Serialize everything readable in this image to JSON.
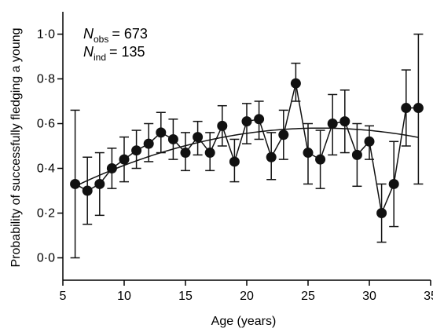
{
  "chart_data": {
    "type": "scatter",
    "xlabel": "Age (years)",
    "ylabel": "Probability of successfully fledging a young",
    "xlim": [
      5,
      35
    ],
    "ylim": [
      -0.1,
      1.1
    ],
    "xticks": [
      5,
      10,
      15,
      20,
      25,
      30,
      35
    ],
    "xtick_labels": [
      "5",
      "10",
      "15",
      "20",
      "25",
      "30",
      "35"
    ],
    "yticks": [
      0.0,
      0.2,
      0.4,
      0.6,
      0.8,
      1.0
    ],
    "ytick_labels": [
      "0·0",
      "0·2",
      "0·4",
      "0·6",
      "0·8",
      "1·0"
    ],
    "annotations": {
      "n_obs": {
        "symbol": "N",
        "subscript": "obs",
        "value": "= 673"
      },
      "n_ind": {
        "symbol": "N",
        "subscript": "ind",
        "value": "= 135"
      }
    },
    "points": [
      {
        "x": 6,
        "y": 0.33,
        "lo": 0.0,
        "hi": 0.66
      },
      {
        "x": 7,
        "y": 0.3,
        "lo": 0.15,
        "hi": 0.45
      },
      {
        "x": 8,
        "y": 0.33,
        "lo": 0.19,
        "hi": 0.47
      },
      {
        "x": 9,
        "y": 0.4,
        "lo": 0.31,
        "hi": 0.49
      },
      {
        "x": 10,
        "y": 0.44,
        "lo": 0.34,
        "hi": 0.54
      },
      {
        "x": 11,
        "y": 0.48,
        "lo": 0.4,
        "hi": 0.57
      },
      {
        "x": 12,
        "y": 0.51,
        "lo": 0.43,
        "hi": 0.6
      },
      {
        "x": 13,
        "y": 0.56,
        "lo": 0.47,
        "hi": 0.65
      },
      {
        "x": 14,
        "y": 0.53,
        "lo": 0.44,
        "hi": 0.62
      },
      {
        "x": 15,
        "y": 0.47,
        "lo": 0.39,
        "hi": 0.56
      },
      {
        "x": 16,
        "y": 0.54,
        "lo": 0.46,
        "hi": 0.61
      },
      {
        "x": 17,
        "y": 0.47,
        "lo": 0.39,
        "hi": 0.56
      },
      {
        "x": 18,
        "y": 0.59,
        "lo": 0.5,
        "hi": 0.68
      },
      {
        "x": 19,
        "y": 0.43,
        "lo": 0.34,
        "hi": 0.53
      },
      {
        "x": 20,
        "y": 0.61,
        "lo": 0.51,
        "hi": 0.69
      },
      {
        "x": 21,
        "y": 0.62,
        "lo": 0.53,
        "hi": 0.7
      },
      {
        "x": 22,
        "y": 0.45,
        "lo": 0.35,
        "hi": 0.56
      },
      {
        "x": 23,
        "y": 0.55,
        "lo": 0.44,
        "hi": 0.66
      },
      {
        "x": 24,
        "y": 0.78,
        "lo": 0.7,
        "hi": 0.87
      },
      {
        "x": 25,
        "y": 0.47,
        "lo": 0.33,
        "hi": 0.6
      },
      {
        "x": 26,
        "y": 0.44,
        "lo": 0.31,
        "hi": 0.57
      },
      {
        "x": 27,
        "y": 0.6,
        "lo": 0.46,
        "hi": 0.73
      },
      {
        "x": 28,
        "y": 0.61,
        "lo": 0.47,
        "hi": 0.75
      },
      {
        "x": 29,
        "y": 0.46,
        "lo": 0.32,
        "hi": 0.6
      },
      {
        "x": 30,
        "y": 0.52,
        "lo": 0.44,
        "hi": 0.59
      },
      {
        "x": 31,
        "y": 0.2,
        "lo": 0.07,
        "hi": 0.33
      },
      {
        "x": 32,
        "y": 0.33,
        "lo": 0.14,
        "hi": 0.52
      },
      {
        "x": 33,
        "y": 0.67,
        "lo": 0.5,
        "hi": 0.84
      },
      {
        "x": 34,
        "y": 0.67,
        "lo": 0.33,
        "hi": 1.0
      }
    ],
    "fit_curve": {
      "type": "quadratic",
      "x_range": [
        6,
        34
      ],
      "vertex_x": 26,
      "vertex_y": 0.58,
      "y_at_6": 0.32
    },
    "marker_color": "#111111",
    "line_color": "#111111",
    "grid": false,
    "legend": "none"
  }
}
